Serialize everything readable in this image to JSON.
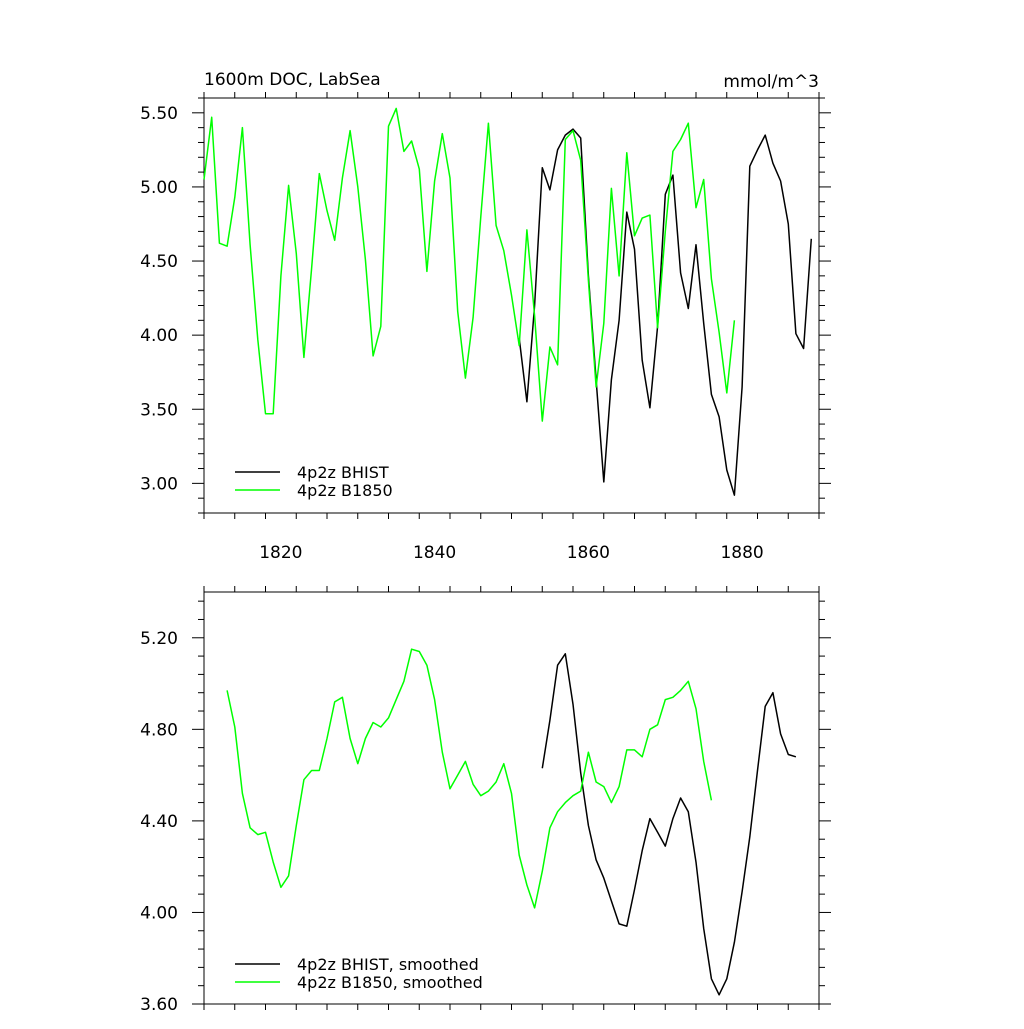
{
  "chart_data": [
    {
      "type": "line",
      "title": "1600m DOC, LabSea",
      "units": "mmol/m^3",
      "xlim": [
        1810,
        1890
      ],
      "ylim": [
        2.8,
        5.6
      ],
      "x_ticks": [
        1820,
        1840,
        1860,
        1880
      ],
      "y_ticks": [
        "3.00",
        "3.50",
        "4.00",
        "4.50",
        "5.00",
        "5.50"
      ],
      "series": [
        {
          "name": "4p2z BHIST",
          "color": "#000000",
          "x": [
            1851,
            1852,
            1853,
            1854,
            1855,
            1856,
            1857,
            1858,
            1859,
            1860,
            1861,
            1862,
            1863,
            1864,
            1865,
            1866,
            1867,
            1868,
            1869,
            1870,
            1871,
            1872,
            1873,
            1874,
            1875,
            1876,
            1877,
            1878,
            1879,
            1880,
            1881,
            1882,
            1883,
            1884,
            1885,
            1886,
            1887,
            1888,
            1889
          ],
          "values": [
            3.98,
            3.55,
            4.2,
            5.13,
            4.98,
            5.25,
            5.35,
            5.39,
            5.33,
            4.4,
            3.7,
            3.01,
            3.7,
            4.1,
            4.83,
            4.58,
            3.83,
            3.51,
            4.06,
            4.95,
            5.08,
            4.42,
            4.18,
            4.61,
            4.08,
            3.6,
            3.45,
            3.09,
            2.92,
            3.65,
            5.14,
            5.25,
            5.35,
            5.16,
            5.04,
            4.75,
            4.01,
            3.91,
            4.65
          ]
        },
        {
          "name": "4p2z B1850",
          "color": "#00ff00",
          "x": [
            1810,
            1811,
            1812,
            1813,
            1814,
            1815,
            1816,
            1817,
            1818,
            1819,
            1820,
            1821,
            1822,
            1823,
            1824,
            1825,
            1826,
            1827,
            1828,
            1829,
            1830,
            1831,
            1832,
            1833,
            1834,
            1835,
            1836,
            1837,
            1838,
            1839,
            1840,
            1841,
            1842,
            1843,
            1844,
            1845,
            1846,
            1847,
            1848,
            1849,
            1850,
            1851,
            1852,
            1853,
            1854,
            1855,
            1856,
            1857,
            1858,
            1859,
            1860,
            1861,
            1862,
            1863,
            1864,
            1865,
            1866,
            1867,
            1868,
            1869,
            1870,
            1871,
            1872,
            1873,
            1874,
            1875,
            1876,
            1877,
            1878,
            1879
          ],
          "values": [
            5.05,
            5.47,
            4.62,
            4.6,
            4.93,
            5.4,
            4.61,
            3.97,
            3.47,
            3.47,
            4.4,
            5.01,
            4.55,
            3.85,
            4.45,
            5.09,
            4.84,
            4.64,
            5.06,
            5.38,
            5.0,
            4.51,
            3.86,
            4.06,
            5.41,
            5.53,
            5.24,
            5.31,
            5.12,
            4.43,
            5.04,
            5.36,
            5.06,
            4.16,
            3.71,
            4.12,
            4.8,
            5.43,
            4.74,
            4.57,
            4.27,
            3.93,
            4.71,
            4.13,
            3.42,
            3.92,
            3.8,
            5.32,
            5.38,
            5.18,
            4.37,
            3.65,
            4.08,
            4.99,
            4.4,
            5.23,
            4.67,
            4.79,
            4.81,
            4.05,
            4.7,
            5.24,
            5.32,
            5.43,
            4.86,
            5.05,
            4.38,
            4.02,
            3.61,
            4.1
          ]
        }
      ],
      "legend_position": "lower-left"
    },
    {
      "type": "line",
      "title": "",
      "xlim": [
        1810,
        1890
      ],
      "ylim": [
        3.6,
        5.4
      ],
      "x_ticks": [
        1820,
        1840,
        1860,
        1880
      ],
      "y_ticks": [
        "3.60",
        "4.00",
        "4.40",
        "4.80",
        "5.20"
      ],
      "series": [
        {
          "name": "4p2z BHIST, smoothed",
          "color": "#000000",
          "x": [
            1854,
            1855,
            1856,
            1857,
            1858,
            1859,
            1860,
            1861,
            1862,
            1863,
            1864,
            1865,
            1866,
            1867,
            1868,
            1869,
            1870,
            1871,
            1872,
            1873,
            1874,
            1875,
            1876,
            1877,
            1878,
            1879,
            1880,
            1881,
            1882,
            1883,
            1884,
            1885,
            1886,
            1887
          ],
          "values": [
            4.63,
            4.84,
            5.08,
            5.13,
            4.91,
            4.61,
            4.38,
            4.23,
            4.15,
            4.05,
            3.95,
            3.94,
            4.1,
            4.27,
            4.41,
            4.35,
            4.29,
            4.41,
            4.5,
            4.44,
            4.22,
            3.93,
            3.71,
            3.64,
            3.71,
            3.87,
            4.09,
            4.33,
            4.62,
            4.9,
            4.96,
            4.78,
            4.69,
            4.68
          ]
        },
        {
          "name": "4p2z B1850, smoothed",
          "color": "#00ff00",
          "x": [
            1813,
            1814,
            1815,
            1816,
            1817,
            1818,
            1819,
            1820,
            1821,
            1822,
            1823,
            1824,
            1825,
            1826,
            1827,
            1828,
            1829,
            1830,
            1831,
            1832,
            1833,
            1834,
            1835,
            1836,
            1837,
            1838,
            1839,
            1840,
            1841,
            1842,
            1843,
            1844,
            1845,
            1846,
            1847,
            1848,
            1849,
            1850,
            1851,
            1852,
            1853,
            1854,
            1855,
            1856,
            1857,
            1858,
            1859,
            1860,
            1861,
            1862,
            1863,
            1864,
            1865,
            1866,
            1867,
            1868,
            1869,
            1870,
            1871,
            1872,
            1873,
            1874,
            1875,
            1876
          ],
          "values": [
            4.97,
            4.81,
            4.52,
            4.37,
            4.34,
            4.35,
            4.22,
            4.11,
            4.16,
            4.38,
            4.58,
            4.62,
            4.62,
            4.76,
            4.92,
            4.94,
            4.76,
            4.65,
            4.76,
            4.83,
            4.81,
            4.85,
            4.93,
            5.01,
            5.15,
            5.14,
            5.08,
            4.93,
            4.7,
            4.54,
            4.6,
            4.66,
            4.56,
            4.51,
            4.53,
            4.57,
            4.65,
            4.52,
            4.25,
            4.12,
            4.02,
            4.18,
            4.37,
            4.44,
            4.48,
            4.51,
            4.53,
            4.7,
            4.57,
            4.55,
            4.48,
            4.55,
            4.71,
            4.71,
            4.68,
            4.8,
            4.82,
            4.93,
            4.94,
            4.97,
            5.01,
            4.89,
            4.66,
            4.49
          ]
        }
      ],
      "legend_position": "lower-left"
    }
  ]
}
